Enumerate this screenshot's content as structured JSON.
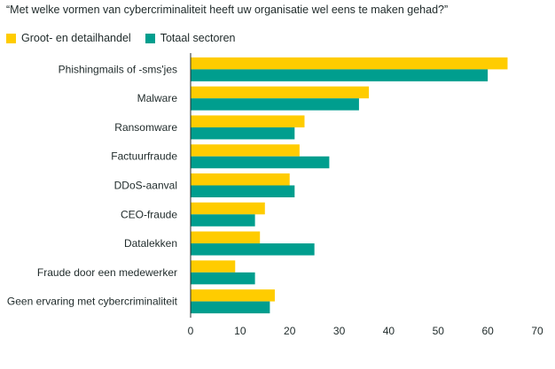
{
  "chart_data": {
    "type": "bar",
    "orientation": "horizontal",
    "title": "“Met welke vormen van cybercriminaliteit heeft uw organisatie wel eens te maken gehad?”",
    "categories": [
      "Phishingmails of -sms'jes",
      "Malware",
      "Ransomware",
      "Factuurfraude",
      "DDoS-aanval",
      "CEO-fraude",
      "Datalekken",
      "Fraude door een medewerker",
      "Geen ervaring met cybercriminaliteit"
    ],
    "series": [
      {
        "name": "Groot- en detailhandel",
        "color": "#FFCC00",
        "values": [
          64,
          36,
          23,
          22,
          20,
          15,
          14,
          9,
          17
        ]
      },
      {
        "name": "Totaal sectoren",
        "color": "#009E8E",
        "values": [
          60,
          34,
          21,
          28,
          21,
          13,
          25,
          13,
          16
        ]
      }
    ],
    "xlim": [
      0,
      70
    ],
    "xticks": [
      0,
      10,
      20,
      30,
      40,
      50,
      60,
      70
    ],
    "grid": false,
    "legend_position": "top-left"
  }
}
